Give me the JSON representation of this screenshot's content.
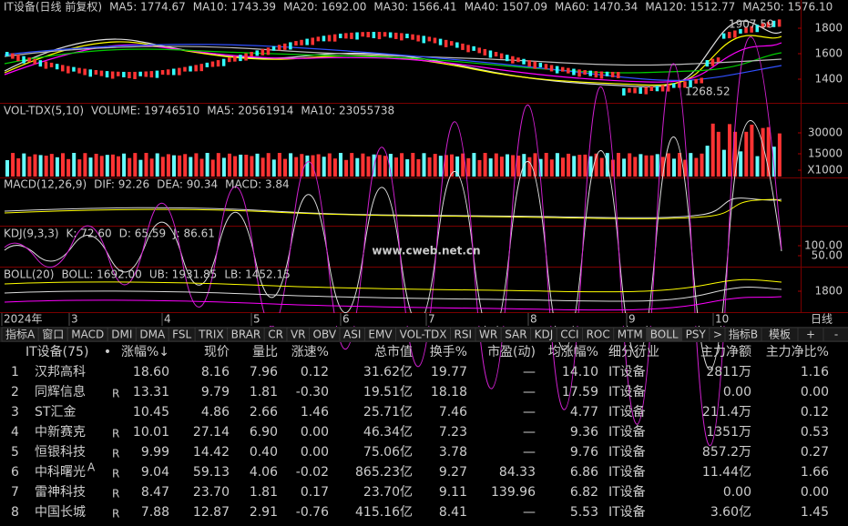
{
  "kline": {
    "title": "IT设备(日线 前复权)",
    "items": [
      {
        "text": "MA5: 1774.67",
        "color": "#ffffff"
      },
      {
        "text": "MA10: 1743.39",
        "color": "#ffff00"
      },
      {
        "text": "MA20: 1692.00",
        "color": "#ff00ff"
      },
      {
        "text": "MA30: 1566.41",
        "color": "#00ff00"
      },
      {
        "text": "MA40: 1507.09",
        "color": "#dddddd"
      },
      {
        "text": "MA60: 1470.34",
        "color": "#3050ff"
      },
      {
        "text": "MA120: 1512.77",
        "color": "#dddddd"
      },
      {
        "text": "MA250: 1576.10",
        "color": "#ffcc33"
      }
    ],
    "high": "1907.59",
    "low": "1268.52",
    "yticks": [
      "1800",
      "1600",
      "1400"
    ]
  },
  "volume": {
    "title": "VOL-TDX(5,10)",
    "items": [
      {
        "text": "VOLUME: 19746510",
        "color": "#dddddd"
      },
      {
        "text": "MA5: 20561914",
        "color": "#dddddd"
      },
      {
        "text": "MA10: 23055738",
        "color": "#ffff00"
      }
    ],
    "yticks": [
      "30000",
      "15000",
      "X1000"
    ]
  },
  "macd": {
    "title": "MACD(12,26,9)",
    "items": [
      {
        "text": "DIF: 92.26",
        "color": "#dddddd"
      },
      {
        "text": "DEA: 90.34",
        "color": "#ffff00"
      },
      {
        "text": "MACD: 3.84",
        "color": "#ff00ff"
      }
    ],
    "yticks": []
  },
  "kdj": {
    "title": "KDJ(9,3,3)",
    "items": [
      {
        "text": "K: 72.60",
        "color": "#dddddd"
      },
      {
        "text": "D: 65.59",
        "color": "#ffff00"
      },
      {
        "text": "J: 86.61",
        "color": "#ff00ff"
      }
    ],
    "yticks": [
      "100.00",
      "50.00"
    ]
  },
  "boll": {
    "title": "BOLL(20)",
    "items": [
      {
        "text": "BOLL: 1692.00",
        "color": "#dddddd"
      },
      {
        "text": "UB: 1931.85",
        "color": "#ffff00"
      },
      {
        "text": "LB: 1452.15",
        "color": "#ff00ff"
      }
    ],
    "yticks": [
      "1800"
    ]
  },
  "watermark": "www.cweb.net.cn",
  "timeline": [
    "2024年",
    "3",
    "4",
    "5",
    "6",
    "7",
    "8",
    "9",
    "10"
  ],
  "period": "日线",
  "tabs": [
    "指标A",
    "窗口",
    "MACD",
    "DMI",
    "DMA",
    "FSL",
    "TRIX",
    "BRAR",
    "CR",
    "VR",
    "OBV",
    "ASI",
    "EMV",
    "VOL-TDX",
    "RSI",
    "WR",
    "SAR",
    "KDJ",
    "CCI",
    "ROC",
    "MTM",
    "BOLL",
    "PSY",
    ">"
  ],
  "selected_tab": 21,
  "tabs_right": [
    "指标B",
    "模板",
    "+",
    "-"
  ],
  "table": {
    "headers": [
      "IT设备(75)",
      "•",
      "涨幅%↓",
      "现价",
      "量比",
      "涨速%",
      "总市值",
      "换手%",
      "市盈(动)",
      "均涨幅%",
      "细分行业",
      "主力净额",
      "主力净比%"
    ],
    "rows": [
      {
        "no": "1",
        "name": "汉邦高科",
        "cells": [
          "18.60",
          "8.16",
          "7.96",
          "0.12",
          "31.62亿",
          "19.77",
          "—",
          "14.10",
          "IT设备",
          "2811万",
          "1.16"
        ]
      },
      {
        "no": "2",
        "name": "同辉信息",
        "tag": "R",
        "cells": [
          "13.31",
          "9.79",
          "1.81",
          "-0.30",
          "19.51亿",
          "18.18",
          "—",
          "17.59",
          "IT设备",
          "0.00",
          "0.00"
        ]
      },
      {
        "no": "3",
        "name": "ST汇金",
        "cells": [
          "10.45",
          "4.86",
          "2.66",
          "1.46",
          "25.71亿",
          "7.46",
          "—",
          "4.77",
          "IT设备",
          "211.4万",
          "0.12"
        ]
      },
      {
        "no": "4",
        "name": "中新赛克",
        "tag": "R",
        "cells": [
          "10.01",
          "27.14",
          "6.90",
          "0.00",
          "46.34亿",
          "7.23",
          "—",
          "9.36",
          "IT设备",
          "1351万",
          "0.53"
        ]
      },
      {
        "no": "5",
        "name": "恒银科技",
        "tag": "R",
        "cells": [
          "9.99",
          "14.42",
          "0.40",
          "0.00",
          "75.06亿",
          "3.78",
          "—",
          "9.76",
          "IT设备",
          "857.2万",
          "0.27"
        ]
      },
      {
        "no": "6",
        "name": "中科曙光",
        "sup": "A",
        "tag": "R",
        "cells": [
          "9.04",
          "59.13",
          "4.06",
          "-0.02",
          "865.23亿",
          "9.27",
          "84.33",
          "6.86",
          "IT设备",
          "11.44亿",
          "1.66"
        ]
      },
      {
        "no": "7",
        "name": "雷神科技",
        "tag": "R",
        "cells": [
          "8.47",
          "23.70",
          "1.81",
          "0.17",
          "23.70亿",
          "9.11",
          "139.96",
          "6.82",
          "IT设备",
          "0.00",
          "0.00"
        ]
      },
      {
        "no": "8",
        "name": "中国长城",
        "tag": "R",
        "cells": [
          "7.88",
          "12.87",
          "2.91",
          "-0.76",
          "415.16亿",
          "8.41",
          "—",
          "5.53",
          "IT设备",
          "3.60亿",
          "1.45"
        ]
      }
    ]
  }
}
